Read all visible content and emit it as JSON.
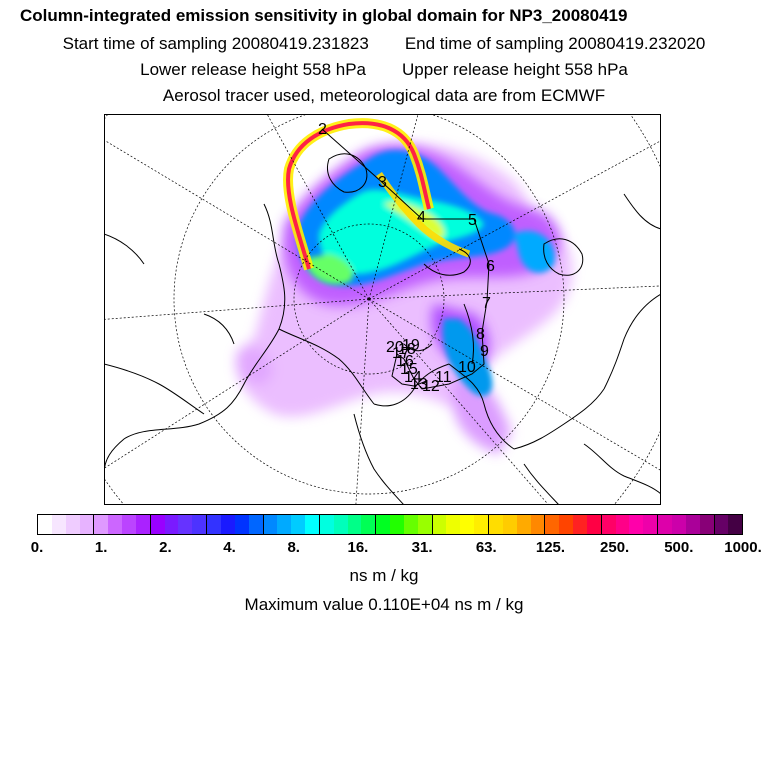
{
  "header": {
    "title": "Column-integrated emission sensitivity in global domain for NP3_20080419",
    "start_time": "Start time of sampling 20080419.231823",
    "end_time": "End time of sampling 20080419.232020",
    "lower_height": "Lower release height  558 hPa",
    "upper_height": "Upper release height  558 hPa",
    "tracer_info": "Aerosol tracer used, meteorological data are from ECMWF"
  },
  "map": {
    "track_labels": [
      "2",
      "3",
      "4",
      "5",
      "6",
      "7",
      "8",
      "9",
      "10",
      "11",
      "12",
      "13",
      "14",
      "15",
      "16",
      "17",
      "18",
      "19",
      "20"
    ]
  },
  "colorbar": {
    "colors": [
      "#ffffff",
      "#f7e6ff",
      "#efccff",
      "#e7b3ff",
      "#df99ff",
      "#cc66ff",
      "#bb44ff",
      "#aa22ff",
      "#9900ff",
      "#7a1aff",
      "#6633ff",
      "#4d33ff",
      "#3333ff",
      "#1a1aff",
      "#0033ff",
      "#0066ff",
      "#0088ff",
      "#00aaff",
      "#00ccff",
      "#00ffff",
      "#00ffe0",
      "#00ffbb",
      "#00ff88",
      "#00ff55",
      "#00ff22",
      "#22ff00",
      "#66ff00",
      "#99ff00",
      "#ccff00",
      "#eeff00",
      "#ffff00",
      "#ffee00",
      "#ffdd00",
      "#ffcc00",
      "#ffaa00",
      "#ff8800",
      "#ff6600",
      "#ff4400",
      "#ff2222",
      "#ff0044",
      "#ff0066",
      "#ff0088",
      "#ff00aa",
      "#ee00aa",
      "#dd00aa",
      "#cc00aa",
      "#aa0099",
      "#880077",
      "#660066",
      "#440044"
    ],
    "tick_labels": [
      "0.",
      "1.",
      "2.",
      "4.",
      "8.",
      "16.",
      "31.",
      "63.",
      "125.",
      "250.",
      "500.",
      "1000."
    ],
    "unit": "ns m / kg"
  },
  "footer": {
    "max_value": "Maximum value  0.110E+04 ns m / kg"
  }
}
